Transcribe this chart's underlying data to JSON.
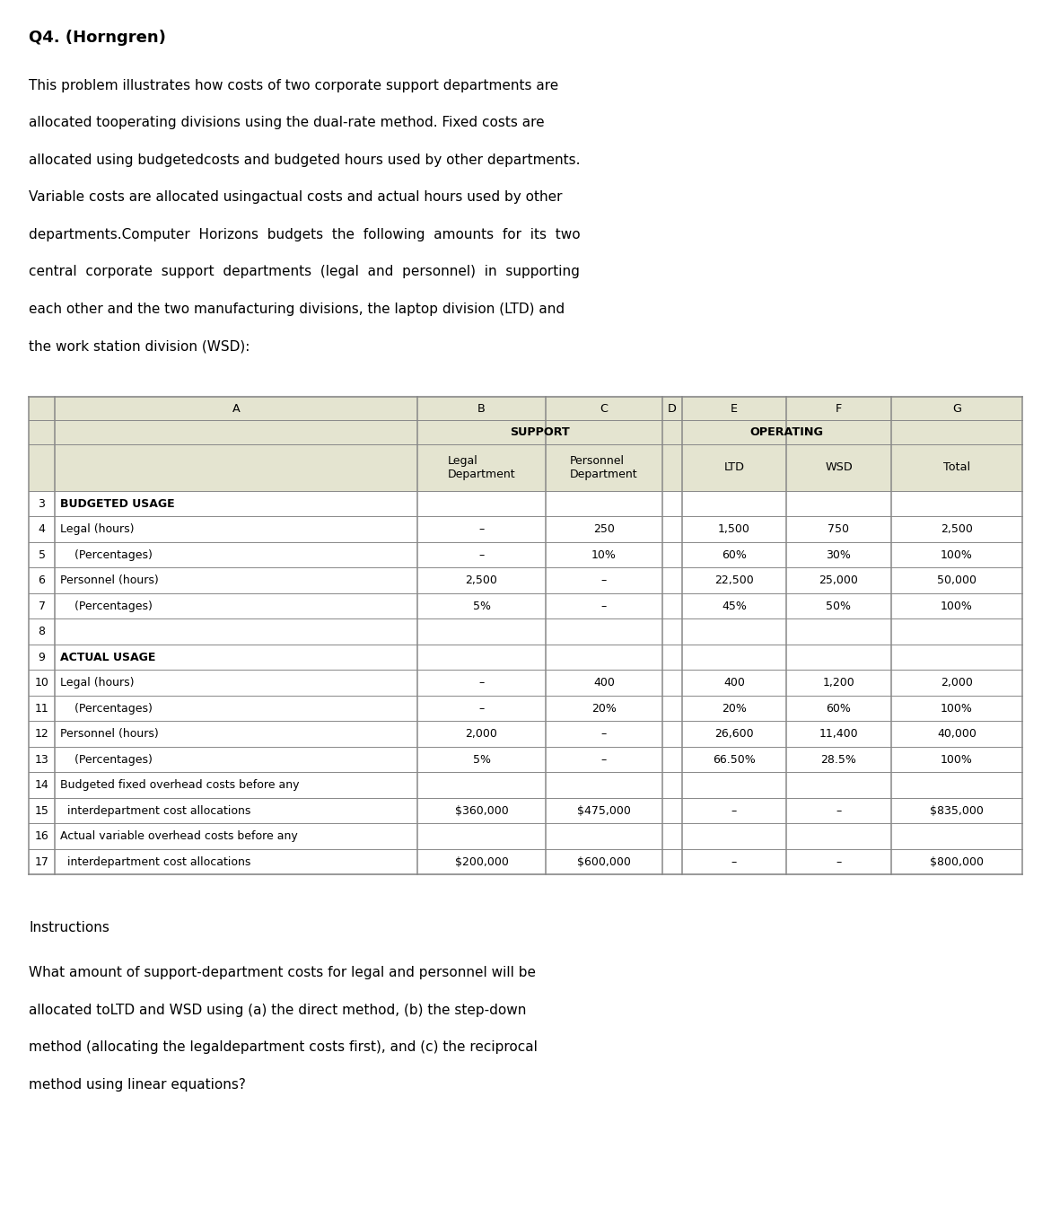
{
  "title": "Q4. (Horngren)",
  "para_lines": [
    "This problem illustrates how costs of two corporate support departments are",
    "allocated tooperating divisions using the dual-rate method. Fixed costs are",
    "allocated using budgetedcosts and budgeted hours used by other departments.",
    "Variable costs are allocated usingactual costs and actual hours used by other",
    "departments.Computer  Horizons  budgets  the  following  amounts  for  its  two",
    "central  corporate  support  departments  (legal  and  personnel)  in  supporting",
    "each other and the two manufacturing divisions, the laptop division (LTD) and",
    "the work station division (WSD):"
  ],
  "instructions_title": "Instructions",
  "instr_lines": [
    "What amount of support-department costs for legal and personnel will be",
    "allocated toLTD and WSD using (a) the direct method, (b) the step-down",
    "method (allocating the legaldepartment costs first), and (c) the reciprocal",
    "method using linear equations?"
  ],
  "col_letters": [
    "",
    "A",
    "B",
    "C",
    "D",
    "E",
    "F",
    "G"
  ],
  "support_label": "SUPPORT",
  "operating_label": "OPERATING",
  "col_headers": [
    "",
    "Legal\nDepartment",
    "Personnel\nDepartment",
    "",
    "LTD",
    "WSD",
    "Total"
  ],
  "rows": [
    {
      "num": "3",
      "a": "BUDGETED USAGE",
      "bold": true,
      "b": "",
      "c": "",
      "e": "",
      "f": "",
      "g": ""
    },
    {
      "num": "4",
      "a": "Legal (hours)",
      "bold": false,
      "b": "–",
      "c": "250",
      "e": "1,500",
      "f": "750",
      "g": "2,500"
    },
    {
      "num": "5",
      "a": "    (Percentages)",
      "bold": false,
      "b": "–",
      "c": "10%",
      "e": "60%",
      "f": "30%",
      "g": "100%"
    },
    {
      "num": "6",
      "a": "Personnel (hours)",
      "bold": false,
      "b": "2,500",
      "c": "–",
      "e": "22,500",
      "f": "25,000",
      "g": "50,000"
    },
    {
      "num": "7",
      "a": "    (Percentages)",
      "bold": false,
      "b": "5%",
      "c": "–",
      "e": "45%",
      "f": "50%",
      "g": "100%"
    },
    {
      "num": "8",
      "a": "",
      "bold": false,
      "b": "",
      "c": "",
      "e": "",
      "f": "",
      "g": ""
    },
    {
      "num": "9",
      "a": "ACTUAL USAGE",
      "bold": true,
      "b": "",
      "c": "",
      "e": "",
      "f": "",
      "g": ""
    },
    {
      "num": "10",
      "a": "Legal (hours)",
      "bold": false,
      "b": "–",
      "c": "400",
      "e": "400",
      "f": "1,200",
      "g": "2,000"
    },
    {
      "num": "11",
      "a": "    (Percentages)",
      "bold": false,
      "b": "–",
      "c": "20%",
      "e": "20%",
      "f": "60%",
      "g": "100%"
    },
    {
      "num": "12",
      "a": "Personnel (hours)",
      "bold": false,
      "b": "2,000",
      "c": "–",
      "e": "26,600",
      "f": "11,400",
      "g": "40,000"
    },
    {
      "num": "13",
      "a": "    (Percentages)",
      "bold": false,
      "b": "5%",
      "c": "–",
      "e": "66.50%",
      "f": "28.5%",
      "g": "100%"
    },
    {
      "num": "14",
      "a": "Budgeted fixed overhead costs before any",
      "bold": false,
      "b": "",
      "c": "",
      "e": "",
      "f": "",
      "g": ""
    },
    {
      "num": "15",
      "a": "  interdepartment cost allocations",
      "bold": false,
      "b": "$360,000",
      "c": "$475,000",
      "e": "–",
      "f": "–",
      "g": "$835,000"
    },
    {
      "num": "16",
      "a": "Actual variable overhead costs before any",
      "bold": false,
      "b": "",
      "c": "",
      "e": "",
      "f": "",
      "g": ""
    },
    {
      "num": "17",
      "a": "  interdepartment cost allocations",
      "bold": false,
      "b": "$200,000",
      "c": "$600,000",
      "e": "–",
      "f": "–",
      "g": "$800,000"
    }
  ],
  "bg_color": "#ffffff",
  "header_bg": "#e4e4d0",
  "grid_color": "#888888"
}
